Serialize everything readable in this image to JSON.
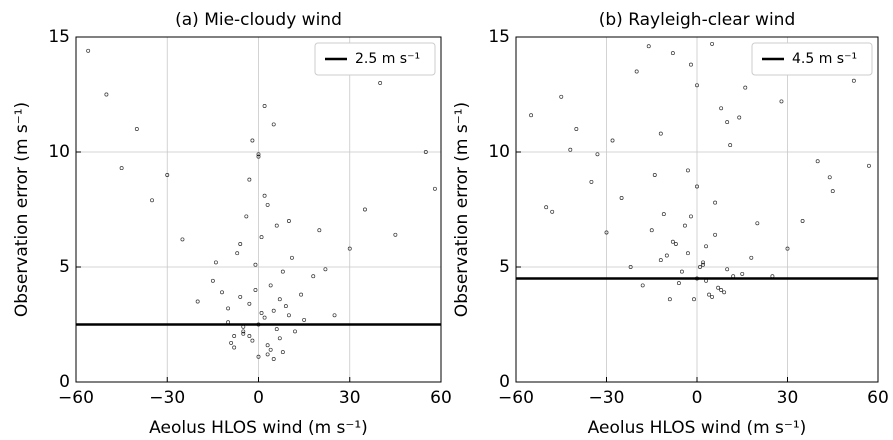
{
  "chart_data": [
    {
      "type": "scatter",
      "title": "(a) Mie-cloudy wind",
      "x_label": "Aeolus HLOS wind (m s⁻¹)",
      "y_label": "Observation error (m s⁻¹)",
      "xlim": [
        -60,
        60
      ],
      "xticks": [
        {
          "value": -60,
          "label": "−60"
        },
        {
          "value": -30,
          "label": "−30"
        },
        0,
        30,
        60
      ],
      "ylim": [
        0,
        15
      ],
      "yticks": [
        0,
        5,
        10,
        15
      ],
      "grid": true,
      "legend": "upper right",
      "series": [
        {
          "color": "#000000",
          "x": [
            -5,
            2,
            7,
            -3,
            0,
            4,
            -8,
            10,
            -1,
            3,
            -6,
            6,
            1,
            -2,
            8,
            -10,
            5,
            -4,
            12,
            -12,
            0,
            3,
            -7,
            9,
            -3,
            2,
            15,
            -15,
            6,
            -9,
            1,
            4,
            -1,
            -5,
            11,
            -2,
            7,
            0,
            -6,
            3,
            18,
            -20,
            25,
            -25,
            5,
            -3,
            8,
            -8,
            2,
            14,
            -14,
            0,
            22,
            -30,
            35,
            -40,
            45,
            -56,
            58,
            -45,
            40,
            -10,
            10,
            -5,
            5,
            30,
            -35,
            55,
            -50,
            20
          ],
          "y": [
            2.1,
            2.8,
            1.9,
            3.4,
            2.5,
            4.2,
            1.5,
            2.9,
            5.1,
            1.2,
            3.7,
            2.3,
            6.3,
            1.8,
            4.8,
            2.6,
            3.1,
            7.2,
            2.2,
            3.9,
            9.8,
            1.6,
            5.6,
            3.3,
            2.0,
            8.1,
            2.7,
            4.4,
            6.8,
            1.7,
            3.0,
            1.4,
            4.0,
            2.4,
            5.4,
            10.5,
            3.6,
            1.1,
            6.0,
            7.7,
            4.6,
            3.5,
            2.9,
            6.2,
            11.2,
            8.8,
            1.3,
            2.0,
            12.0,
            3.8,
            5.2,
            9.9,
            4.9,
            9.0,
            7.5,
            11.0,
            6.4,
            14.4,
            8.4,
            9.3,
            13.0,
            3.2,
            7.0,
            2.2,
            1.0,
            5.8,
            7.9,
            10.0,
            12.5,
            6.6
          ]
        }
      ],
      "hline": {
        "name": "2.5 m s⁻¹",
        "value": 2.5,
        "color": "#000000"
      }
    },
    {
      "type": "scatter",
      "title": "(b) Rayleigh-clear wind",
      "x_label": "Aeolus HLOS wind (m s⁻¹)",
      "y_label": "Observation error (m s⁻¹)",
      "xlim": [
        -60,
        60
      ],
      "xticks": [
        {
          "value": -60,
          "label": "−60"
        },
        {
          "value": -30,
          "label": "−30"
        },
        0,
        30,
        60
      ],
      "ylim": [
        0,
        15
      ],
      "yticks": [
        0,
        5,
        10,
        15
      ],
      "grid": true,
      "legend": "upper right",
      "series": [
        {
          "color": "#000000",
          "x": [
            -5,
            2,
            7,
            -3,
            0,
            4,
            -8,
            10,
            -1,
            3,
            -6,
            6,
            1,
            -2,
            8,
            -10,
            5,
            -4,
            12,
            -12,
            0,
            3,
            -7,
            9,
            -3,
            2,
            15,
            -15,
            6,
            -9,
            18,
            -18,
            20,
            -22,
            25,
            -25,
            11,
            -11,
            14,
            -14,
            -30,
            30,
            -35,
            35,
            -40,
            40,
            -45,
            45,
            -50,
            52,
            -55,
            57,
            -28,
            28,
            -20,
            22,
            -16,
            16,
            -8,
            8,
            -33,
            33,
            -42,
            44,
            -48,
            0,
            -2,
            5,
            -12,
            10
          ],
          "y": [
            4.8,
            5.2,
            4.1,
            5.6,
            4.5,
            3.8,
            6.1,
            4.9,
            3.6,
            5.9,
            4.3,
            6.4,
            5.0,
            7.2,
            4.0,
            5.5,
            3.7,
            6.8,
            4.6,
            5.3,
            8.5,
            4.4,
            6.0,
            3.9,
            9.2,
            5.1,
            4.7,
            6.6,
            7.8,
            3.6,
            5.4,
            4.2,
            6.9,
            5.0,
            4.6,
            8.0,
            10.3,
            7.3,
            11.5,
            9.0,
            6.5,
            5.8,
            8.7,
            7.0,
            11.0,
            9.6,
            12.4,
            8.3,
            7.6,
            13.1,
            11.6,
            9.4,
            10.5,
            12.2,
            13.5,
            14.0,
            14.6,
            12.8,
            14.3,
            11.9,
            9.9,
            13.7,
            10.1,
            8.9,
            7.4,
            12.9,
            13.8,
            14.7,
            10.8,
            11.3
          ]
        }
      ],
      "hline": {
        "name": "4.5 m s⁻¹",
        "value": 4.5,
        "color": "#000000"
      }
    }
  ]
}
